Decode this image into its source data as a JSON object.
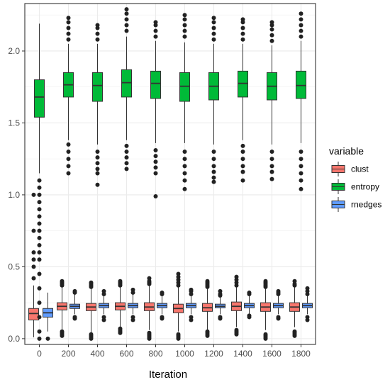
{
  "chart_data": {
    "type": "box",
    "xlabel": "Iteration",
    "ylabel": "",
    "ylim": [
      -0.04,
      2.33
    ],
    "y_ticks": [
      "0.0",
      "0.5",
      "1.0",
      "1.5",
      "2.0"
    ],
    "y_tick_values": [
      0.0,
      0.5,
      1.0,
      1.5,
      2.0
    ],
    "categories": [
      "0",
      "200",
      "400",
      "600",
      "800",
      "1000",
      "1200",
      "1400",
      "1600",
      "1800"
    ],
    "grid": true,
    "legend": {
      "title": "variable",
      "position": "right"
    },
    "series": [
      {
        "name": "clust",
        "color": "#f8766d",
        "boxes": [
          {
            "min": 0.01,
            "q1": 0.13,
            "median": 0.175,
            "q3": 0.21,
            "max": 0.37,
            "outliers": [
              0.42,
              0.5,
              0.55,
              0.6,
              0.75,
              1.0
            ]
          },
          {
            "min": 0.06,
            "q1": 0.2,
            "median": 0.225,
            "q3": 0.25,
            "max": 0.36,
            "outliers": [
              0.02,
              0.03,
              0.04,
              0.05,
              0.37,
              0.38,
              0.39,
              0.4
            ]
          },
          {
            "min": 0.04,
            "q1": 0.195,
            "median": 0.22,
            "q3": 0.245,
            "max": 0.35,
            "outliers": [
              0.0,
              0.01,
              0.02,
              0.03,
              0.36,
              0.37,
              0.38,
              0.39
            ]
          },
          {
            "min": 0.08,
            "q1": 0.2,
            "median": 0.225,
            "q3": 0.25,
            "max": 0.36,
            "outliers": [
              0.04,
              0.05,
              0.06,
              0.07,
              0.37,
              0.38,
              0.39,
              0.4
            ]
          },
          {
            "min": 0.06,
            "q1": 0.195,
            "median": 0.22,
            "q3": 0.25,
            "max": 0.37,
            "outliers": [
              0.0,
              0.01,
              0.02,
              0.03,
              0.04,
              0.38,
              0.39,
              0.4,
              0.42
            ]
          },
          {
            "min": 0.05,
            "q1": 0.18,
            "median": 0.21,
            "q3": 0.24,
            "max": 0.36,
            "outliers": [
              0.0,
              0.01,
              0.02,
              0.03,
              0.37,
              0.39,
              0.41,
              0.43,
              0.45
            ]
          },
          {
            "min": 0.06,
            "q1": 0.19,
            "median": 0.215,
            "q3": 0.245,
            "max": 0.35,
            "outliers": [
              0.02,
              0.03,
              0.04,
              0.05,
              0.36,
              0.37,
              0.38,
              0.39,
              0.4
            ]
          },
          {
            "min": 0.08,
            "q1": 0.195,
            "median": 0.225,
            "q3": 0.255,
            "max": 0.36,
            "outliers": [
              0.03,
              0.04,
              0.05,
              0.06,
              0.37,
              0.39,
              0.41,
              0.43
            ]
          },
          {
            "min": 0.06,
            "q1": 0.19,
            "median": 0.22,
            "q3": 0.25,
            "max": 0.35,
            "outliers": [
              0.0,
              0.01,
              0.02,
              0.03,
              0.36,
              0.37,
              0.38,
              0.39,
              0.4
            ]
          },
          {
            "min": 0.08,
            "q1": 0.19,
            "median": 0.22,
            "q3": 0.25,
            "max": 0.36,
            "outliers": [
              0.02,
              0.03,
              0.04,
              0.05,
              0.37,
              0.38,
              0.4
            ]
          }
        ]
      },
      {
        "name": "entropy",
        "color": "#00ba38",
        "boxes": [
          {
            "min": 1.15,
            "q1": 1.54,
            "median": 1.68,
            "q3": 1.8,
            "max": 2.19,
            "outliers": [
              0.0,
              0.05,
              0.15,
              0.25,
              0.35,
              0.45,
              0.55,
              0.6,
              0.65,
              0.7,
              0.75,
              0.8,
              0.85,
              0.9,
              0.95,
              1.0,
              1.05,
              1.1
            ]
          },
          {
            "min": 1.38,
            "q1": 1.68,
            "median": 1.765,
            "q3": 1.85,
            "max": 2.05,
            "outliers": [
              1.15,
              1.2,
              1.25,
              1.3,
              1.35,
              2.08,
              2.12,
              2.16,
              2.2,
              2.23
            ]
          },
          {
            "min": 1.35,
            "q1": 1.65,
            "median": 1.76,
            "q3": 1.85,
            "max": 2.05,
            "outliers": [
              1.07,
              1.15,
              1.18,
              1.22,
              1.26,
              1.3,
              2.08,
              2.12,
              2.16,
              2.18
            ]
          },
          {
            "min": 1.38,
            "q1": 1.68,
            "median": 1.78,
            "q3": 1.87,
            "max": 2.1,
            "outliers": [
              1.18,
              1.22,
              1.26,
              1.3,
              1.34,
              2.14,
              2.18,
              2.22,
              2.26,
              2.29
            ]
          },
          {
            "min": 1.36,
            "q1": 1.67,
            "median": 1.775,
            "q3": 1.86,
            "max": 2.07,
            "outliers": [
              0.99,
              1.15,
              1.19,
              1.23,
              1.27,
              1.31,
              2.1,
              2.14,
              2.18,
              2.2
            ]
          },
          {
            "min": 1.36,
            "q1": 1.65,
            "median": 1.755,
            "q3": 1.85,
            "max": 2.06,
            "outliers": [
              1.04,
              1.1,
              1.15,
              1.2,
              1.25,
              1.3,
              2.1,
              2.14,
              2.18,
              2.22,
              2.25
            ]
          },
          {
            "min": 1.35,
            "q1": 1.66,
            "median": 1.755,
            "q3": 1.85,
            "max": 2.05,
            "outliers": [
              1.09,
              1.12,
              1.16,
              1.2,
              1.25,
              1.3,
              2.08,
              2.12,
              2.16,
              2.2,
              2.23
            ]
          },
          {
            "min": 1.38,
            "q1": 1.68,
            "median": 1.775,
            "q3": 1.86,
            "max": 2.05,
            "outliers": [
              1.1,
              1.16,
              1.2,
              1.25,
              1.3,
              1.34,
              2.08,
              2.12,
              2.16,
              2.2,
              2.22
            ]
          },
          {
            "min": 1.35,
            "q1": 1.66,
            "median": 1.755,
            "q3": 1.85,
            "max": 2.04,
            "outliers": [
              1.11,
              1.16,
              1.2,
              1.25,
              1.3,
              2.07,
              2.11,
              2.15,
              2.18,
              2.2
            ]
          },
          {
            "min": 1.36,
            "q1": 1.67,
            "median": 1.76,
            "q3": 1.86,
            "max": 2.07,
            "outliers": [
              1.04,
              1.1,
              1.15,
              1.2,
              1.25,
              1.3,
              2.1,
              2.14,
              2.18,
              2.22,
              2.26
            ]
          }
        ]
      },
      {
        "name": "rnedges",
        "color": "#619cff",
        "boxes": [
          {
            "min": 0.05,
            "q1": 0.15,
            "median": 0.18,
            "q3": 0.21,
            "max": 0.32,
            "outliers": [
              0.0
            ]
          },
          {
            "min": 0.17,
            "q1": 0.21,
            "median": 0.225,
            "q3": 0.24,
            "max": 0.31,
            "outliers": [
              0.14,
              0.15,
              0.32,
              0.33
            ]
          },
          {
            "min": 0.17,
            "q1": 0.215,
            "median": 0.23,
            "q3": 0.245,
            "max": 0.3,
            "outliers": [
              0.13,
              0.15,
              0.31,
              0.33
            ]
          },
          {
            "min": 0.17,
            "q1": 0.215,
            "median": 0.23,
            "q3": 0.245,
            "max": 0.31,
            "outliers": [
              0.13,
              0.15,
              0.32,
              0.34
            ]
          },
          {
            "min": 0.17,
            "q1": 0.215,
            "median": 0.23,
            "q3": 0.245,
            "max": 0.3,
            "outliers": [
              0.14,
              0.15,
              0.31,
              0.32
            ]
          },
          {
            "min": 0.17,
            "q1": 0.215,
            "median": 0.23,
            "q3": 0.245,
            "max": 0.3,
            "outliers": [
              0.13,
              0.15,
              0.31,
              0.33,
              0.34
            ]
          },
          {
            "min": 0.17,
            "q1": 0.215,
            "median": 0.225,
            "q3": 0.24,
            "max": 0.29,
            "outliers": [
              0.14,
              0.15,
              0.3,
              0.31,
              0.33
            ]
          },
          {
            "min": 0.17,
            "q1": 0.215,
            "median": 0.23,
            "q3": 0.245,
            "max": 0.3,
            "outliers": [
              0.15,
              0.16,
              0.31,
              0.32
            ]
          },
          {
            "min": 0.17,
            "q1": 0.215,
            "median": 0.23,
            "q3": 0.245,
            "max": 0.3,
            "outliers": [
              0.14,
              0.15,
              0.31,
              0.32,
              0.33
            ]
          },
          {
            "min": 0.17,
            "q1": 0.215,
            "median": 0.23,
            "q3": 0.245,
            "max": 0.3,
            "outliers": [
              0.13,
              0.15,
              0.31,
              0.33,
              0.35
            ]
          }
        ]
      }
    ]
  }
}
